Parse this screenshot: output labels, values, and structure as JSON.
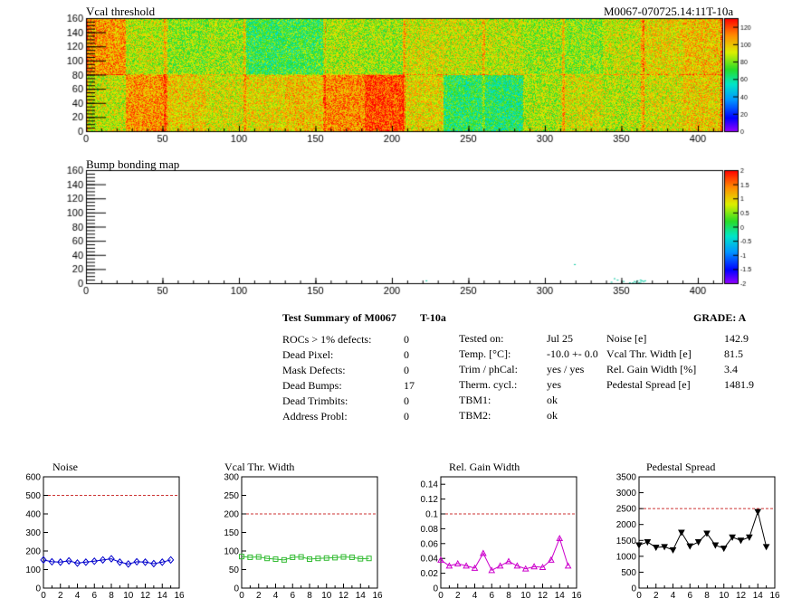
{
  "header": {
    "left_title": "Vcal threshold",
    "right_title": "M0067-070725.14:11T-10a"
  },
  "maps": [
    {
      "title": "Vcal threshold",
      "x_ticks": [
        "0",
        "50",
        "100",
        "150",
        "200",
        "250",
        "300",
        "350",
        "400"
      ],
      "y_ticks": [
        "0",
        "20",
        "40",
        "60",
        "80",
        "100",
        "120",
        "140",
        "160"
      ],
      "xlim": [
        0,
        416
      ],
      "ylim": [
        0,
        160
      ],
      "palette_labels": [
        "0",
        "20",
        "40",
        "60",
        "80",
        "100",
        "120"
      ],
      "palette_range": [
        0,
        130
      ],
      "roc_means_top": [
        108,
        88,
        82,
        84,
        70,
        72,
        86,
        84,
        92,
        90,
        88,
        84,
        82,
        90,
        96,
        100
      ],
      "roc_means_bottom": [
        90,
        108,
        98,
        92,
        96,
        100,
        110,
        120,
        96,
        68,
        66,
        86,
        92,
        88,
        92,
        98
      ]
    },
    {
      "title": "Bump bonding map",
      "x_ticks": [
        "0",
        "50",
        "100",
        "150",
        "200",
        "250",
        "300",
        "350",
        "400"
      ],
      "y_ticks": [
        "0",
        "20",
        "40",
        "60",
        "80",
        "100",
        "120",
        "140",
        "160"
      ],
      "xlim": [
        0,
        416
      ],
      "ylim": [
        0,
        160
      ],
      "palette_labels": [
        "-2",
        "-1.5",
        "-1",
        "-0.5",
        "0",
        "0.5",
        "1",
        "1.5",
        "2"
      ],
      "palette_range": [
        -2,
        2
      ],
      "dead_bumps": [
        [
          319,
          26
        ],
        [
          222,
          3
        ],
        [
          345,
          6
        ],
        [
          358,
          2
        ],
        [
          360,
          3
        ],
        [
          362,
          1
        ],
        [
          363,
          3
        ],
        [
          361,
          0
        ],
        [
          359,
          1
        ],
        [
          364,
          2
        ],
        [
          357,
          0
        ],
        [
          362,
          4
        ],
        [
          355,
          0
        ],
        [
          351,
          2
        ],
        [
          347,
          4
        ],
        [
          343,
          1
        ],
        [
          365,
          3
        ]
      ]
    }
  ],
  "summary": {
    "title": "Test Summary of M0067",
    "temp_tag": "T-10a",
    "grade_label": "GRADE:  A",
    "col1": [
      {
        "label": "ROCs > 1% defects:",
        "value": "0"
      },
      {
        "label": "Dead Pixel:",
        "value": "0"
      },
      {
        "label": "Mask Defects:",
        "value": "0"
      },
      {
        "label": "Dead Bumps:",
        "value": "17"
      },
      {
        "label": "Dead Trimbits:",
        "value": "0"
      },
      {
        "label": "Address Probl:",
        "value": "0"
      }
    ],
    "col2": [
      {
        "label": "Tested on:",
        "value": "Jul 25"
      },
      {
        "label": "Temp. [°C]:",
        "value": "-10.0 +- 0.0"
      },
      {
        "label": "Trim / phCal:",
        "value": "yes / yes"
      },
      {
        "label": "Therm. cycl.:",
        "value": "yes"
      },
      {
        "label": "TBM1:",
        "value": "ok"
      },
      {
        "label": "TBM2:",
        "value": "ok"
      }
    ],
    "col3": [
      {
        "label": "Noise [e]",
        "value": "142.9"
      },
      {
        "label": "Vcal Thr. Width [e]",
        "value": "81.5"
      },
      {
        "label": "Rel. Gain Width [%]",
        "value": "3.4"
      },
      {
        "label": "Pedestal Spread [e]",
        "value": "1481.9"
      }
    ]
  },
  "chart_data": [
    {
      "type": "line",
      "title": "Noise",
      "color": "#0000cc",
      "marker": "diamond",
      "x": [
        0,
        1,
        2,
        3,
        4,
        5,
        6,
        7,
        8,
        9,
        10,
        11,
        12,
        13,
        14,
        15
      ],
      "values": [
        152,
        142,
        140,
        147,
        135,
        140,
        145,
        152,
        158,
        140,
        130,
        142,
        140,
        132,
        140,
        152
      ],
      "ylim": [
        0,
        600
      ],
      "xlim": [
        0,
        16
      ],
      "limit": 500,
      "y_ticks": [
        "0",
        "100",
        "200",
        "300",
        "400",
        "500",
        "600"
      ],
      "x_ticks": [
        "0",
        "2",
        "4",
        "6",
        "8",
        "10",
        "12",
        "14",
        "16"
      ]
    },
    {
      "type": "line",
      "title": "Vcal Thr. Width",
      "color": "#33bb33",
      "marker": "square",
      "x": [
        0,
        1,
        2,
        3,
        4,
        5,
        6,
        7,
        8,
        9,
        10,
        11,
        12,
        13,
        14,
        15
      ],
      "values": [
        85,
        83,
        84,
        80,
        78,
        76,
        83,
        84,
        78,
        80,
        81,
        82,
        84,
        83,
        79,
        80
      ],
      "ylim": [
        0,
        300
      ],
      "xlim": [
        0,
        16
      ],
      "limit": 200,
      "y_ticks": [
        "0",
        "50",
        "100",
        "150",
        "200",
        "250",
        "300"
      ],
      "x_ticks": [
        "0",
        "2",
        "4",
        "6",
        "8",
        "10",
        "12",
        "14",
        "16"
      ]
    },
    {
      "type": "line",
      "title": "Rel. Gain Width",
      "color": "#cc00cc",
      "marker": "triangle",
      "x": [
        0,
        1,
        2,
        3,
        4,
        5,
        6,
        7,
        8,
        9,
        10,
        11,
        12,
        13,
        14,
        15
      ],
      "values": [
        0.038,
        0.03,
        0.033,
        0.03,
        0.027,
        0.047,
        0.024,
        0.03,
        0.036,
        0.03,
        0.026,
        0.029,
        0.028,
        0.038,
        0.067,
        0.03
      ],
      "ylim": [
        0,
        0.15
      ],
      "xlim": [
        0,
        16
      ],
      "limit": 0.1,
      "y_ticks": [
        "0",
        "0.02",
        "0.04",
        "0.06",
        "0.08",
        "0.1",
        "0.12",
        "0.14"
      ],
      "x_ticks": [
        "0",
        "2",
        "4",
        "6",
        "8",
        "10",
        "12",
        "14",
        "16"
      ]
    },
    {
      "type": "line",
      "title": "Pedestal Spread",
      "color": "#000000",
      "marker": "triangle-down",
      "x": [
        0,
        1,
        2,
        3,
        4,
        5,
        6,
        7,
        8,
        9,
        10,
        11,
        12,
        13,
        14,
        15
      ],
      "values": [
        1350,
        1450,
        1280,
        1300,
        1200,
        1750,
        1320,
        1450,
        1720,
        1350,
        1250,
        1600,
        1500,
        1600,
        2400,
        1300
      ],
      "ylim": [
        0,
        3500
      ],
      "xlim": [
        0,
        16
      ],
      "limit": 2500,
      "y_ticks": [
        "0",
        "500",
        "1000",
        "1500",
        "2000",
        "2500",
        "3000",
        "3500"
      ],
      "x_ticks": [
        "0",
        "2",
        "4",
        "6",
        "8",
        "10",
        "12",
        "14",
        "16"
      ]
    }
  ]
}
